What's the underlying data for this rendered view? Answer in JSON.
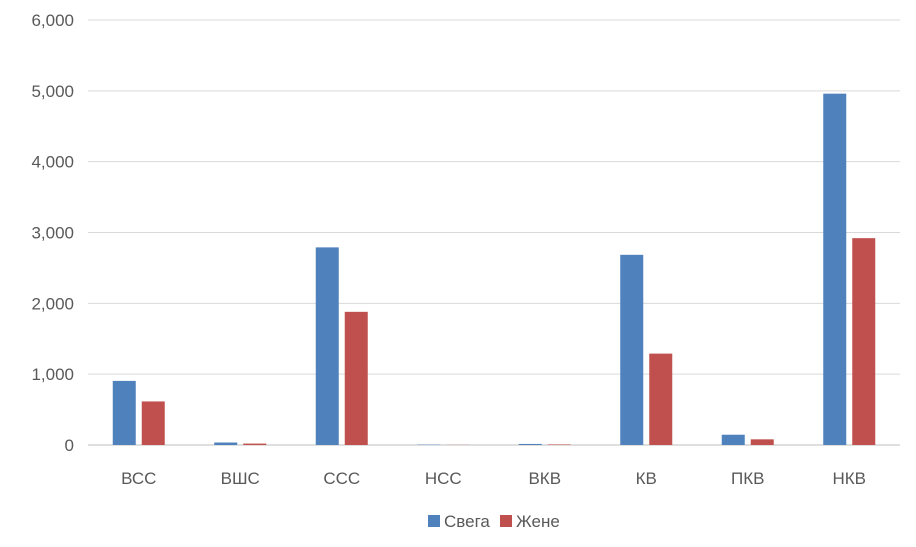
{
  "chart_data": {
    "type": "bar",
    "categories": [
      "ВСС",
      "ВШС",
      "ССС",
      "НСС",
      "ВКВ",
      "КВ",
      "ПКВ",
      "НКВ"
    ],
    "series": [
      {
        "name": "Свега",
        "color": "#4F81BD",
        "values": [
          905,
          35,
          2790,
          5,
          15,
          2685,
          145,
          4960
        ]
      },
      {
        "name": "Жене",
        "color": "#C0504D",
        "values": [
          615,
          20,
          1880,
          2,
          8,
          1290,
          80,
          2920
        ]
      }
    ],
    "ylim": [
      0,
      6000
    ],
    "yticks": [
      "0",
      "1,000",
      "2,000",
      "3,000",
      "4,000",
      "5,000",
      "6,000"
    ],
    "grid": true,
    "legend_position": "bottom"
  }
}
